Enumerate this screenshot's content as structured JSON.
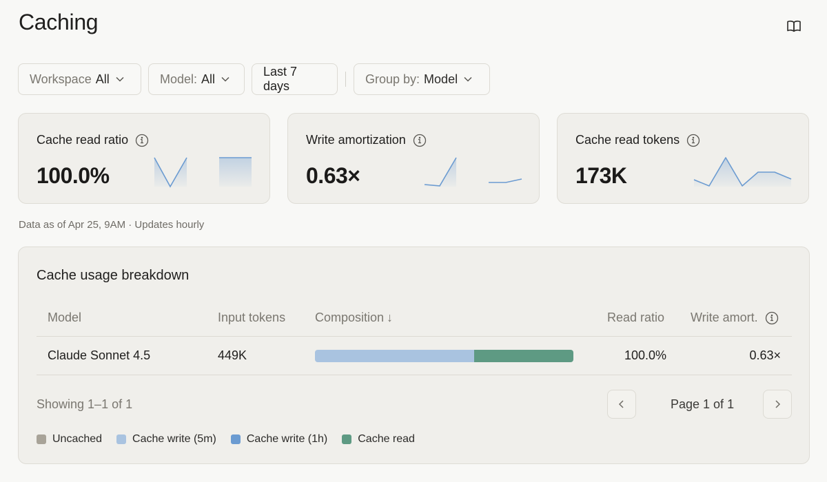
{
  "header": {
    "title": "Caching",
    "docs_icon": "book-open-icon"
  },
  "filters": {
    "workspace": {
      "label": "Workspace",
      "value": "All"
    },
    "model": {
      "label": "Model:",
      "value": "All"
    },
    "range": {
      "value": "Last 7 days"
    },
    "group_by": {
      "label": "Group by:",
      "value": "Model"
    }
  },
  "cards": [
    {
      "title": "Cache read ratio",
      "value": "100.0%"
    },
    {
      "title": "Write amortization",
      "value": "0.63×"
    },
    {
      "title": "Cache read tokens",
      "value": "173K"
    }
  ],
  "data_note": "Data as of Apr 25, 9AM · Updates hourly",
  "breakdown": {
    "title": "Cache usage breakdown",
    "columns": {
      "model": "Model",
      "input_tokens": "Input tokens",
      "composition": "Composition",
      "composition_sort": "↓",
      "read_ratio": "Read ratio",
      "write_amort": "Write amort."
    },
    "rows": [
      {
        "model": "Claude Sonnet 4.5",
        "input_tokens": "449K",
        "composition": {
          "uncached": 0,
          "cache_write_5m": 0.615,
          "cache_write_1h": 0,
          "cache_read": 0.385
        },
        "read_ratio": "100.0%",
        "write_amort": "0.63×"
      }
    ],
    "showing": "Showing 1–1 of 1",
    "page_label": "Page 1 of 1",
    "legend": [
      {
        "label": "Uncached",
        "color": "#a8a398"
      },
      {
        "label": "Cache write (5m)",
        "color": "#a9c3e0"
      },
      {
        "label": "Cache write (1h)",
        "color": "#6b9bd1"
      },
      {
        "label": "Cache read",
        "color": "#5e9a83"
      }
    ]
  },
  "colors": {
    "accent_line": "#6b9bd1",
    "card_bg": "#f0efeb",
    "page_bg": "#f8f8f6"
  }
}
